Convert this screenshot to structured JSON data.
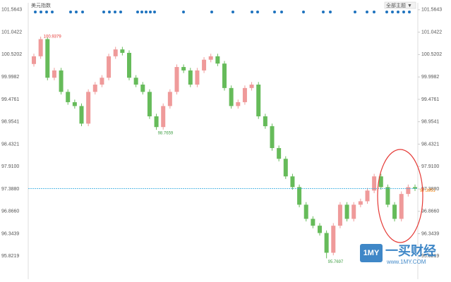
{
  "chart_data": {
    "type": "candlestick",
    "title": "美元指数",
    "ylim": [
      95.3,
      101.71
    ],
    "yticks": [
      101.5643,
      101.0422,
      100.5202,
      99.9982,
      99.4761,
      98.9541,
      98.4321,
      {
        "value": 97.91,
        "label": "97.9100"
      },
      {
        "value": 97.388,
        "label": "97.3880"
      },
      {
        "value": 96.866,
        "label": "96.8660"
      },
      96.3439,
      95.8219
    ],
    "up_color": "#ef9a9a",
    "down_color": "#66bb5a",
    "series": [
      {
        "open": [
          100.3,
          100.48,
          100.88,
          99.98,
          100.15,
          99.65,
          99.41,
          99.32,
          98.91,
          99.65,
          99.82,
          99.98,
          100.48,
          100.64,
          100.56,
          99.98,
          99.82,
          99.65,
          99.08,
          98.83,
          99.32,
          99.65,
          100.23,
          100.15,
          99.82,
          100.15,
          100.4,
          100.48,
          100.31,
          99.74,
          99.32,
          99.41,
          99.74,
          99.82,
          99.08,
          98.85,
          98.34,
          98.09,
          97.68,
          97.43,
          97.02,
          96.69,
          96.53,
          96.36,
          95.9,
          96.53,
          97.02,
          96.69,
          97.02,
          97.1,
          97.35,
          97.68,
          97.43,
          97.02,
          96.69,
          97.27,
          97.43
        ],
        "high": [
          100.54,
          100.9379,
          100.92,
          100.21,
          100.21,
          99.71,
          99.47,
          99.38,
          99.71,
          99.88,
          100.04,
          100.54,
          100.7,
          100.7,
          100.62,
          100.04,
          99.88,
          99.71,
          99.14,
          99.38,
          99.71,
          100.29,
          100.29,
          100.21,
          100.21,
          100.46,
          100.54,
          100.54,
          100.37,
          99.8,
          99.47,
          99.8,
          99.88,
          99.88,
          99.14,
          98.91,
          98.4,
          98.15,
          97.74,
          97.49,
          97.08,
          96.75,
          96.59,
          96.42,
          96.59,
          97.08,
          97.08,
          97.08,
          97.16,
          97.41,
          97.74,
          97.74,
          97.49,
          97.08,
          97.33,
          97.49,
          97.49
        ],
        "low": [
          100.24,
          100.42,
          99.92,
          99.92,
          99.59,
          99.35,
          99.26,
          98.85,
          98.85,
          99.59,
          99.76,
          99.92,
          100.42,
          100.5,
          99.92,
          99.76,
          99.59,
          99.02,
          98.7659,
          98.77,
          99.26,
          99.59,
          100.09,
          99.76,
          99.76,
          100.09,
          100.34,
          100.25,
          99.68,
          99.26,
          99.26,
          99.35,
          99.68,
          99.02,
          98.79,
          98.28,
          98.03,
          97.62,
          97.37,
          96.96,
          96.63,
          96.47,
          96.3,
          95.7697,
          95.84,
          96.47,
          96.63,
          96.63,
          96.96,
          97.04,
          97.29,
          97.37,
          96.96,
          96.63,
          96.63,
          97.21,
          97.34
        ],
        "close": [
          100.48,
          100.88,
          99.98,
          100.15,
          99.65,
          99.41,
          99.32,
          98.91,
          99.65,
          99.82,
          99.98,
          100.48,
          100.64,
          100.56,
          99.98,
          99.82,
          99.65,
          99.08,
          98.83,
          99.32,
          99.65,
          100.23,
          100.15,
          99.82,
          100.15,
          100.4,
          100.48,
          100.31,
          99.74,
          99.32,
          99.41,
          99.74,
          99.82,
          99.08,
          98.85,
          98.34,
          98.09,
          97.68,
          97.43,
          97.02,
          96.69,
          96.53,
          96.36,
          95.9,
          96.53,
          97.02,
          96.69,
          97.02,
          97.1,
          97.35,
          97.68,
          97.43,
          97.02,
          96.69,
          97.27,
          97.43,
          97.3951
        ]
      }
    ]
  },
  "toolbar": {
    "theme_menu": "全部主题 ▼"
  },
  "watermark": {
    "logo": "1MY",
    "name": "一买财经",
    "url": "www.1MY.COM"
  }
}
